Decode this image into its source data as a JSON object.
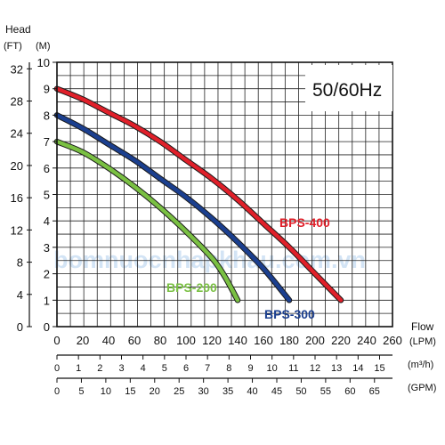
{
  "chart_data": {
    "type": "line",
    "frequency_label": "50/60Hz",
    "watermark": "bomnuocnhapkhau.com.vn",
    "y_axis": {
      "title": "Head",
      "unit_ft": "(FT)",
      "unit_m": "(M)",
      "m_ticks": [
        "0",
        "1",
        "2",
        "3",
        "4",
        "5",
        "6",
        "7",
        "8",
        "9",
        "10"
      ],
      "ft_ticks": [
        "0",
        "4",
        "8",
        "12",
        "16",
        "20",
        "24",
        "28",
        "32"
      ],
      "ylim": [
        0,
        10
      ]
    },
    "x_axis": {
      "title": "Flow",
      "unit_lpm": "(LPM)",
      "unit_m3h": "(m³/h)",
      "unit_gpm": "(GPM)",
      "lpm_ticks": [
        "0",
        "20",
        "40",
        "60",
        "80",
        "100",
        "120",
        "140",
        "160",
        "180",
        "200",
        "220",
        "240",
        "260"
      ],
      "m3h_ticks": [
        "0",
        "1",
        "2",
        "3",
        "4",
        "5",
        "6",
        "7",
        "8",
        "9",
        "10",
        "11",
        "12",
        "13",
        "14",
        "15"
      ],
      "gpm_ticks": [
        "0",
        "5",
        "10",
        "15",
        "20",
        "25",
        "30",
        "35",
        "40",
        "45",
        "50",
        "55",
        "60",
        "65"
      ],
      "xlim": [
        0,
        260
      ]
    },
    "grid": true,
    "series": [
      {
        "name": "BPS-400",
        "color": "#e0202a",
        "x": [
          0,
          20,
          40,
          60,
          80,
          100,
          120,
          140,
          160,
          180,
          200,
          220
        ],
        "y": [
          9.0,
          8.6,
          8.1,
          7.6,
          7.0,
          6.3,
          5.6,
          4.8,
          3.9,
          3.0,
          2.0,
          1.0
        ]
      },
      {
        "name": "BPS-300",
        "color": "#1b3f8f",
        "x": [
          0,
          20,
          40,
          60,
          80,
          100,
          120,
          140,
          160,
          180
        ],
        "y": [
          8.0,
          7.5,
          6.9,
          6.3,
          5.6,
          4.9,
          4.1,
          3.2,
          2.2,
          1.0
        ]
      },
      {
        "name": "BPS-200",
        "color": "#7ac043",
        "x": [
          0,
          20,
          40,
          60,
          80,
          100,
          120,
          130,
          140
        ],
        "y": [
          7.0,
          6.6,
          6.0,
          5.3,
          4.5,
          3.6,
          2.6,
          1.9,
          1.0
        ]
      }
    ]
  }
}
